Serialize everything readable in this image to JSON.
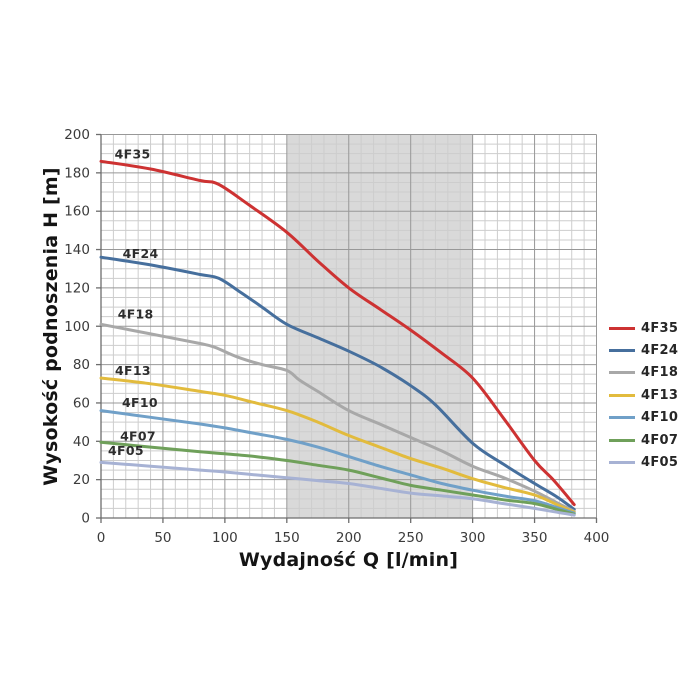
{
  "chart_data": {
    "type": "line",
    "title": "",
    "xlabel": "Wydajność Q [l/min]",
    "ylabel": "Wysokość podnoszenia H [m]",
    "xlim": [
      0,
      400
    ],
    "ylim": [
      0,
      200
    ],
    "x_major_ticks": [
      0,
      50,
      100,
      150,
      200,
      250,
      300,
      350,
      400
    ],
    "y_major_ticks": [
      0,
      20,
      40,
      60,
      80,
      100,
      120,
      140,
      160,
      180,
      200
    ],
    "x_minor_step": 10,
    "y_minor_step": 5,
    "grid": true,
    "legend_position": "right",
    "highlight_band": {
      "x_from": 150,
      "x_to": 300,
      "color": "#d9d9d9"
    },
    "series": [
      {
        "name": "4F35",
        "color": "#cd3232",
        "label_at": [
          11,
          187.5
        ],
        "points": [
          [
            0,
            186
          ],
          [
            40,
            182
          ],
          [
            80,
            176
          ],
          [
            95,
            174
          ],
          [
            120,
            163
          ],
          [
            150,
            149
          ],
          [
            175,
            134
          ],
          [
            200,
            120
          ],
          [
            225,
            109
          ],
          [
            250,
            98
          ],
          [
            275,
            86
          ],
          [
            300,
            73
          ],
          [
            325,
            52
          ],
          [
            350,
            30
          ],
          [
            365,
            20
          ],
          [
            382,
            7
          ]
        ]
      },
      {
        "name": "4F24",
        "color": "#466f9d",
        "label_at": [
          17.5,
          135.5
        ],
        "points": [
          [
            0,
            136
          ],
          [
            40,
            132
          ],
          [
            80,
            127
          ],
          [
            95,
            125
          ],
          [
            112,
            118
          ],
          [
            130,
            110
          ],
          [
            150,
            101
          ],
          [
            175,
            94
          ],
          [
            200,
            87
          ],
          [
            225,
            79
          ],
          [
            250,
            69
          ],
          [
            270,
            59
          ],
          [
            300,
            39
          ],
          [
            325,
            28
          ],
          [
            350,
            18
          ],
          [
            368,
            11
          ],
          [
            382,
            4.5
          ]
        ]
      },
      {
        "name": "4F18",
        "color": "#a8a8a8",
        "label_at": [
          13.5,
          104
        ],
        "points": [
          [
            0,
            101
          ],
          [
            40,
            96
          ],
          [
            80,
            91
          ],
          [
            92,
            89
          ],
          [
            110,
            84
          ],
          [
            130,
            80
          ],
          [
            150,
            77
          ],
          [
            160,
            72
          ],
          [
            175,
            66
          ],
          [
            200,
            56
          ],
          [
            225,
            49
          ],
          [
            250,
            42
          ],
          [
            275,
            35
          ],
          [
            300,
            27
          ],
          [
            325,
            21
          ],
          [
            350,
            14
          ],
          [
            368,
            8
          ],
          [
            382,
            3.5
          ]
        ]
      },
      {
        "name": "4F13",
        "color": "#e2bb3d",
        "label_at": [
          11.3,
          74.5
        ],
        "points": [
          [
            0,
            73
          ],
          [
            40,
            70
          ],
          [
            80,
            66
          ],
          [
            100,
            64
          ],
          [
            125,
            60
          ],
          [
            150,
            56
          ],
          [
            175,
            50
          ],
          [
            200,
            43
          ],
          [
            225,
            37
          ],
          [
            250,
            31
          ],
          [
            275,
            26
          ],
          [
            300,
            20.5
          ],
          [
            325,
            16
          ],
          [
            350,
            12
          ],
          [
            368,
            7
          ],
          [
            382,
            3
          ]
        ]
      },
      {
        "name": "4F10",
        "color": "#70a0c8",
        "label_at": [
          17,
          57.8
        ],
        "points": [
          [
            0,
            56
          ],
          [
            40,
            52.5
          ],
          [
            80,
            49
          ],
          [
            100,
            47
          ],
          [
            125,
            44
          ],
          [
            150,
            41
          ],
          [
            175,
            37
          ],
          [
            200,
            32
          ],
          [
            225,
            27
          ],
          [
            250,
            22.5
          ],
          [
            275,
            18
          ],
          [
            300,
            14.5
          ],
          [
            325,
            11.5
          ],
          [
            350,
            9
          ],
          [
            368,
            5.5
          ],
          [
            382,
            2.5
          ]
        ]
      },
      {
        "name": "4F07",
        "color": "#6fa05a",
        "label_at": [
          15.4,
          40.3
        ],
        "points": [
          [
            0,
            39.5
          ],
          [
            40,
            37
          ],
          [
            80,
            34.5
          ],
          [
            100,
            33.5
          ],
          [
            125,
            32
          ],
          [
            150,
            30
          ],
          [
            175,
            27.5
          ],
          [
            200,
            25
          ],
          [
            225,
            21
          ],
          [
            250,
            17
          ],
          [
            275,
            14.5
          ],
          [
            300,
            12
          ],
          [
            325,
            9.5
          ],
          [
            350,
            7.5
          ],
          [
            368,
            4.5
          ],
          [
            382,
            2
          ]
        ]
      },
      {
        "name": "4F05",
        "color": "#a7b2d4",
        "label_at": [
          5.7,
          32.8
        ],
        "points": [
          [
            0,
            29
          ],
          [
            40,
            27
          ],
          [
            80,
            25
          ],
          [
            100,
            24
          ],
          [
            125,
            22.5
          ],
          [
            150,
            21
          ],
          [
            175,
            19.5
          ],
          [
            200,
            18
          ],
          [
            225,
            15.5
          ],
          [
            250,
            13
          ],
          [
            275,
            11.5
          ],
          [
            300,
            10
          ],
          [
            325,
            7.5
          ],
          [
            350,
            5
          ],
          [
            368,
            3
          ],
          [
            382,
            1.5
          ]
        ]
      }
    ]
  }
}
